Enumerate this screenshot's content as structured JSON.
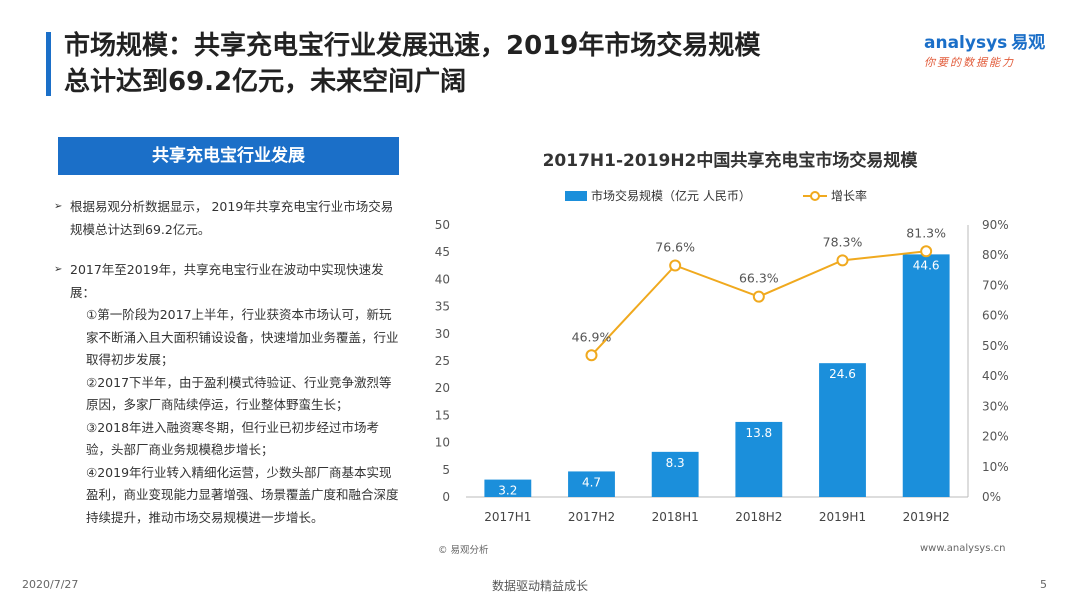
{
  "slide": {
    "title_line1": "市场规模：共享充电宝行业发展迅速，2019年市场交易规模",
    "title_line2": "总计达到69.2亿元，未来空间广阔"
  },
  "logo": {
    "brand": "analysys",
    "brand_cn": "易观",
    "tagline": "你要的数据能力"
  },
  "left_panel": {
    "banner": "共享充电宝行业发展",
    "bullet1": "根据易观分析数据显示， 2019年共享充电宝行业市场交易规模总计达到69.2亿元。",
    "bullet2_head": "2017年至2019年，共享充电宝行业在波动中实现快速发展：",
    "sub1": "①第一阶段为2017上半年，行业获资本市场认可，新玩家不断涌入且大面积铺设设备，快速增加业务覆盖，行业取得初步发展；",
    "sub2": "②2017下半年，由于盈利模式待验证、行业竞争激烈等原因，多家厂商陆续停运，行业整体野蛮生长；",
    "sub3": "③2018年进入融资寒冬期，但行业已初步经过市场考验，头部厂商业务规模稳步增长；",
    "sub4": "④2019年行业转入精细化运营，少数头部厂商基本实现盈利，商业变现能力显著增强、场景覆盖广度和融合深度持续提升，推动市场交易规模进一步增长。"
  },
  "chart_data": {
    "type": "bar",
    "title": "2017H1-2019H2中国共享充电宝市场交易规模",
    "categories": [
      "2017H1",
      "2017H2",
      "2018H1",
      "2018H2",
      "2019H1",
      "2019H2"
    ],
    "series": [
      {
        "name": "市场交易规模（亿元 人民币）",
        "type": "bar",
        "axis": "left",
        "values": [
          3.2,
          4.7,
          8.3,
          13.8,
          24.6,
          44.6
        ],
        "labels": [
          "3.2",
          "4.7",
          "8.3",
          "13.8",
          "24.6",
          "44.6"
        ],
        "color": "#1b8fdb"
      },
      {
        "name": "增长率",
        "type": "line",
        "axis": "right",
        "values": [
          null,
          46.9,
          76.6,
          66.3,
          78.3,
          81.3
        ],
        "labels": [
          "",
          "46.9%",
          "76.6%",
          "66.3%",
          "78.3%",
          "81.3%"
        ],
        "color": "#f0a91e"
      }
    ],
    "ylim_left": [
      0,
      50
    ],
    "yticks_left": [
      "0",
      "5",
      "10",
      "15",
      "20",
      "25",
      "30",
      "35",
      "40",
      "45",
      "50"
    ],
    "ylim_right": [
      0,
      90
    ],
    "yticks_right": [
      "0%",
      "10%",
      "20%",
      "30%",
      "40%",
      "50%",
      "60%",
      "70%",
      "80%",
      "90%"
    ],
    "legend_position": "top-center",
    "grid": false
  },
  "source_note": "© 易观分析",
  "website": "www.analysys.cn",
  "footer": {
    "date": "2020/7/27",
    "slogan": "数据驱动精益成长",
    "page": "5"
  }
}
